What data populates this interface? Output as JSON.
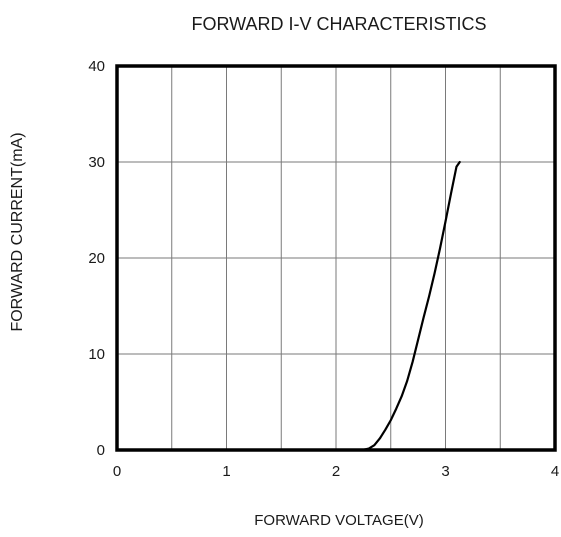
{
  "chart_data": {
    "type": "line",
    "title": "FORWARD I-V CHARACTERISTICS",
    "xlabel": "FORWARD VOLTAGE(V)",
    "ylabel": "FORWARD CURRENT(mA)",
    "xlim": [
      0,
      4
    ],
    "ylim": [
      0,
      40
    ],
    "x_ticks": [
      "0",
      "1",
      "2",
      "3",
      "4"
    ],
    "y_ticks": [
      "0",
      "10",
      "20",
      "30",
      "40"
    ],
    "grid": true,
    "x_minor_gridlines": true,
    "series": [
      {
        "color": "#000000",
        "points": [
          [
            2.24,
            0.0
          ],
          [
            2.3,
            0.15
          ],
          [
            2.35,
            0.5
          ],
          [
            2.4,
            1.2
          ],
          [
            2.45,
            2.1
          ],
          [
            2.5,
            3.1
          ],
          [
            2.55,
            4.3
          ],
          [
            2.6,
            5.6
          ],
          [
            2.65,
            7.2
          ],
          [
            2.7,
            9.2
          ],
          [
            2.75,
            11.5
          ],
          [
            2.8,
            13.8
          ],
          [
            2.85,
            16.0
          ],
          [
            2.9,
            18.4
          ],
          [
            2.95,
            21.0
          ],
          [
            3.0,
            23.8
          ],
          [
            3.05,
            26.7
          ],
          [
            3.1,
            29.5
          ],
          [
            3.13,
            30.0
          ]
        ]
      }
    ]
  }
}
